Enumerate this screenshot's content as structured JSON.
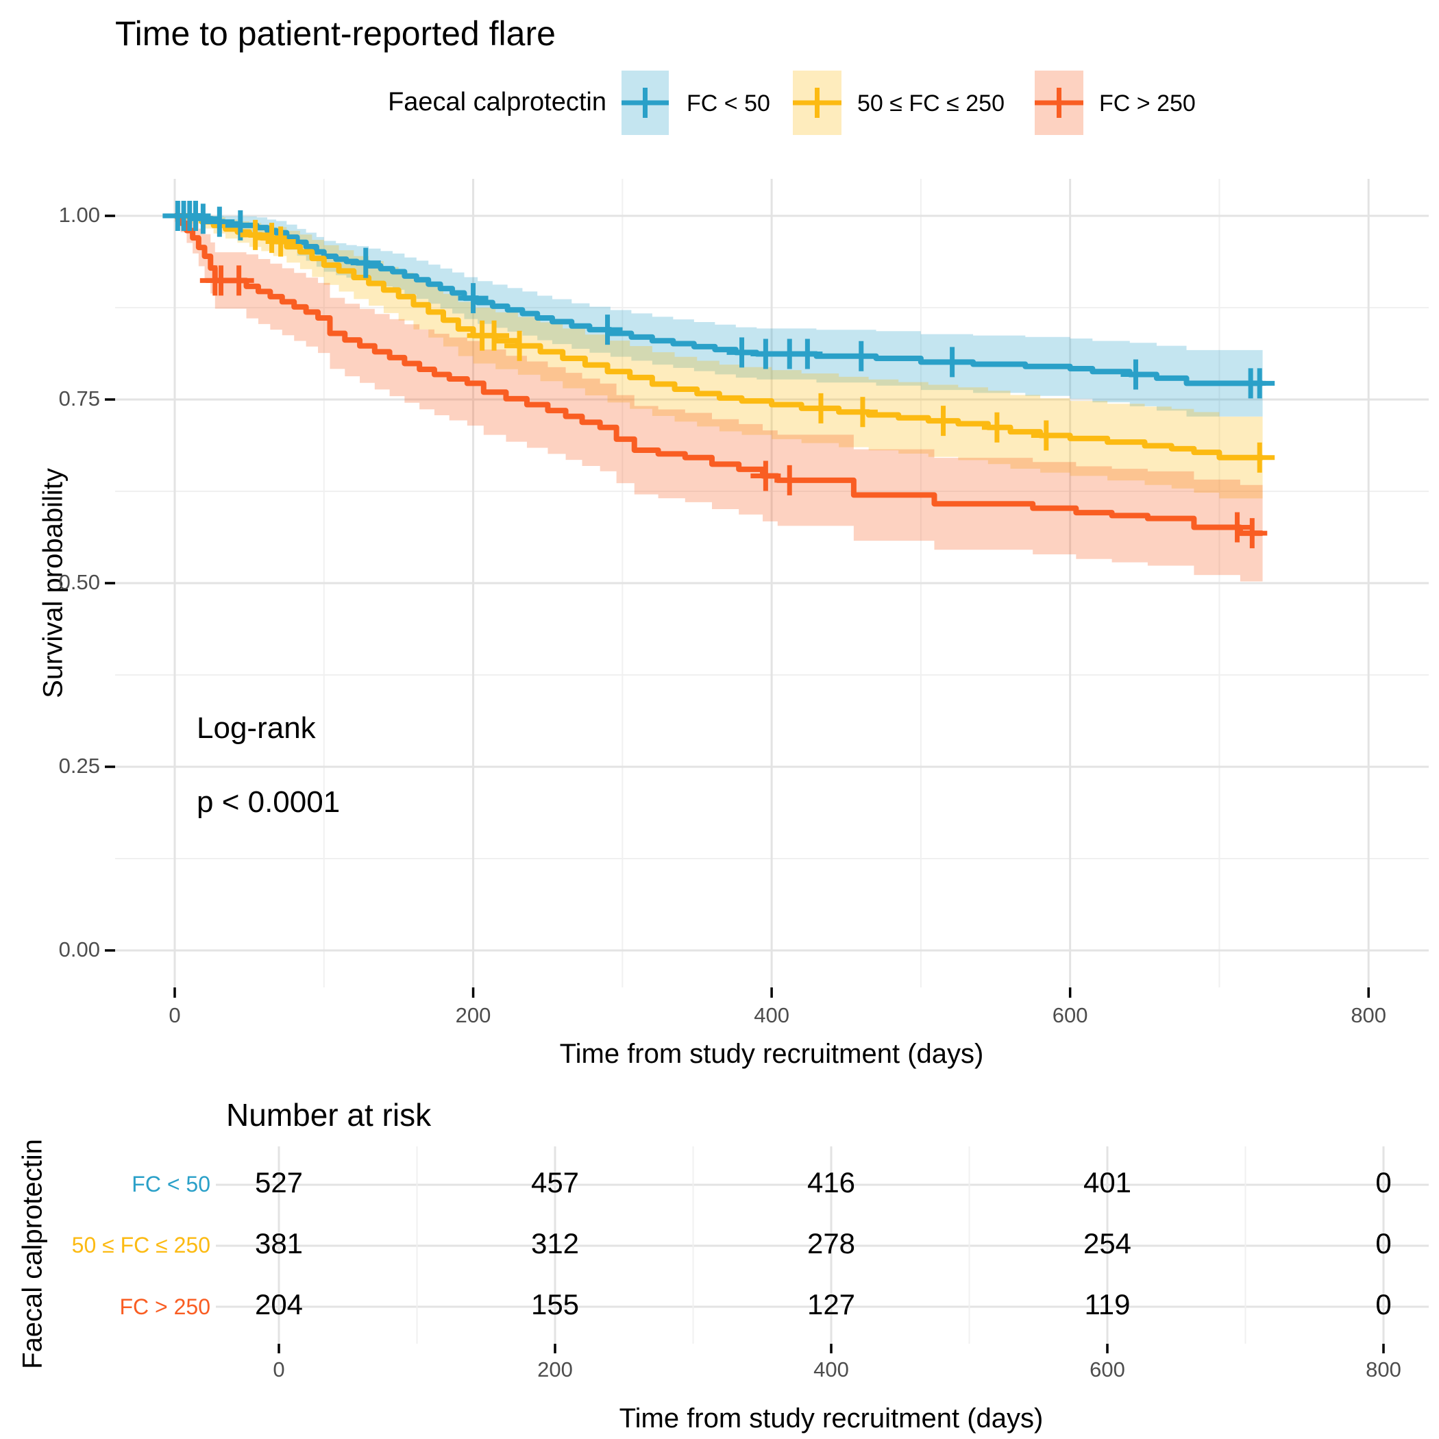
{
  "title": "Time to patient-reported flare",
  "legend": {
    "title": "Faecal calprotectin",
    "items": [
      {
        "label": "FC < 50",
        "color": "#2AA0C8"
      },
      {
        "label": "50 ≤ FC ≤ 250",
        "color": "#FCBA12"
      },
      {
        "label": "FC > 250",
        "color": "#F95D22"
      }
    ]
  },
  "annotation": {
    "line1": "Log-rank",
    "line2": "p < 0.0001"
  },
  "chart_data": {
    "type": "line",
    "subtype": "kaplan-meier-step",
    "title": "Time to patient-reported flare",
    "xlabel": "Time from study recruitment (days)",
    "ylabel": "Survival probability",
    "xlim": [
      0,
      800
    ],
    "xticks": [
      0,
      200,
      400,
      600,
      800
    ],
    "xminor": [
      100,
      300,
      500,
      700
    ],
    "ylim": [
      0,
      1
    ],
    "yticks": [
      0,
      0.25,
      0.5,
      0.75,
      1
    ],
    "yticklabels": [
      "0.00",
      "0.25",
      "0.50",
      "0.75",
      "1.00"
    ],
    "yminor": [
      0.125,
      0.375,
      0.625,
      0.875
    ],
    "grid": true,
    "legend_position": "top",
    "end_time": 729,
    "series": [
      {
        "name": "FC < 50",
        "color": "#2AA0C8",
        "n_start": 527,
        "steps": [
          [
            0,
            1.0
          ],
          [
            17,
            0.996
          ],
          [
            25,
            0.992
          ],
          [
            33,
            0.989
          ],
          [
            44,
            0.987
          ],
          [
            55,
            0.984
          ],
          [
            62,
            0.98
          ],
          [
            68,
            0.977
          ],
          [
            75,
            0.971
          ],
          [
            82,
            0.964
          ],
          [
            88,
            0.958
          ],
          [
            95,
            0.951
          ],
          [
            100,
            0.945
          ],
          [
            108,
            0.941
          ],
          [
            115,
            0.938
          ],
          [
            122,
            0.936
          ],
          [
            130,
            0.932
          ],
          [
            138,
            0.928
          ],
          [
            146,
            0.924
          ],
          [
            154,
            0.918
          ],
          [
            162,
            0.913
          ],
          [
            170,
            0.907
          ],
          [
            178,
            0.901
          ],
          [
            186,
            0.895
          ],
          [
            194,
            0.888
          ],
          [
            203,
            0.882
          ],
          [
            213,
            0.877
          ],
          [
            223,
            0.872
          ],
          [
            233,
            0.867
          ],
          [
            243,
            0.861
          ],
          [
            253,
            0.856
          ],
          [
            266,
            0.85
          ],
          [
            278,
            0.845
          ],
          [
            292,
            0.84
          ],
          [
            306,
            0.835
          ],
          [
            320,
            0.83
          ],
          [
            334,
            0.826
          ],
          [
            348,
            0.822
          ],
          [
            362,
            0.818
          ],
          [
            376,
            0.814
          ],
          [
            390,
            0.812
          ],
          [
            430,
            0.809
          ],
          [
            470,
            0.806
          ],
          [
            500,
            0.801
          ],
          [
            535,
            0.798
          ],
          [
            570,
            0.795
          ],
          [
            600,
            0.792
          ],
          [
            615,
            0.788
          ],
          [
            640,
            0.784
          ],
          [
            658,
            0.779
          ],
          [
            678,
            0.772
          ]
        ],
        "censor_times": [
          2,
          6,
          10,
          14,
          19,
          30,
          44,
          128,
          200,
          290,
          380,
          396,
          412,
          424,
          460,
          521,
          644,
          721,
          727
        ],
        "ci_halfwidth": [
          [
            0,
            0.004
          ],
          [
            30,
            0.01
          ],
          [
            100,
            0.021
          ],
          [
            200,
            0.029
          ],
          [
            400,
            0.035
          ],
          [
            600,
            0.041
          ],
          [
            729,
            0.048
          ]
        ]
      },
      {
        "name": "50 ≤ FC ≤ 250",
        "color": "#FCBA12",
        "n_start": 381,
        "steps": [
          [
            0,
            1.0
          ],
          [
            10,
            0.997
          ],
          [
            18,
            0.992
          ],
          [
            26,
            0.987
          ],
          [
            34,
            0.982
          ],
          [
            42,
            0.978
          ],
          [
            50,
            0.974
          ],
          [
            58,
            0.97
          ],
          [
            66,
            0.965
          ],
          [
            75,
            0.958
          ],
          [
            84,
            0.951
          ],
          [
            92,
            0.942
          ],
          [
            100,
            0.933
          ],
          [
            110,
            0.925
          ],
          [
            120,
            0.916
          ],
          [
            130,
            0.908
          ],
          [
            140,
            0.899
          ],
          [
            150,
            0.89
          ],
          [
            160,
            0.879
          ],
          [
            170,
            0.869
          ],
          [
            180,
            0.858
          ],
          [
            190,
            0.846
          ],
          [
            200,
            0.837
          ],
          [
            215,
            0.83
          ],
          [
            230,
            0.823
          ],
          [
            245,
            0.815
          ],
          [
            260,
            0.806
          ],
          [
            275,
            0.797
          ],
          [
            290,
            0.788
          ],
          [
            305,
            0.78
          ],
          [
            320,
            0.771
          ],
          [
            335,
            0.764
          ],
          [
            350,
            0.758
          ],
          [
            365,
            0.752
          ],
          [
            380,
            0.748
          ],
          [
            400,
            0.743
          ],
          [
            420,
            0.738
          ],
          [
            445,
            0.733
          ],
          [
            465,
            0.729
          ],
          [
            485,
            0.725
          ],
          [
            505,
            0.721
          ],
          [
            525,
            0.717
          ],
          [
            545,
            0.712
          ],
          [
            560,
            0.706
          ],
          [
            580,
            0.701
          ],
          [
            600,
            0.697
          ],
          [
            625,
            0.692
          ],
          [
            650,
            0.687
          ],
          [
            668,
            0.683
          ],
          [
            683,
            0.678
          ],
          [
            700,
            0.671
          ]
        ],
        "censor_times": [
          54,
          65,
          71,
          206,
          214,
          231,
          433,
          461,
          515,
          551,
          584,
          727
        ],
        "ci_halfwidth": [
          [
            0,
            0.005
          ],
          [
            30,
            0.012
          ],
          [
            100,
            0.027
          ],
          [
            200,
            0.038
          ],
          [
            400,
            0.047
          ],
          [
            600,
            0.051
          ],
          [
            729,
            0.057
          ]
        ]
      },
      {
        "name": "FC > 250",
        "color": "#F95D22",
        "n_start": 204,
        "steps": [
          [
            0,
            1.0
          ],
          [
            4,
            0.99
          ],
          [
            8,
            0.98
          ],
          [
            12,
            0.97
          ],
          [
            16,
            0.957
          ],
          [
            20,
            0.945
          ],
          [
            24,
            0.929
          ],
          [
            27,
            0.912
          ],
          [
            48,
            0.904
          ],
          [
            56,
            0.897
          ],
          [
            64,
            0.89
          ],
          [
            72,
            0.883
          ],
          [
            80,
            0.876
          ],
          [
            88,
            0.869
          ],
          [
            96,
            0.861
          ],
          [
            104,
            0.84
          ],
          [
            114,
            0.831
          ],
          [
            124,
            0.823
          ],
          [
            134,
            0.815
          ],
          [
            144,
            0.807
          ],
          [
            154,
            0.799
          ],
          [
            164,
            0.791
          ],
          [
            174,
            0.784
          ],
          [
            184,
            0.778
          ],
          [
            196,
            0.772
          ],
          [
            207,
            0.76
          ],
          [
            222,
            0.751
          ],
          [
            236,
            0.743
          ],
          [
            250,
            0.735
          ],
          [
            262,
            0.727
          ],
          [
            273,
            0.719
          ],
          [
            285,
            0.712
          ],
          [
            296,
            0.696
          ],
          [
            308,
            0.681
          ],
          [
            324,
            0.676
          ],
          [
            342,
            0.671
          ],
          [
            360,
            0.662
          ],
          [
            378,
            0.655
          ],
          [
            394,
            0.646
          ],
          [
            404,
            0.64
          ],
          [
            455,
            0.62
          ],
          [
            509,
            0.608
          ],
          [
            575,
            0.602
          ],
          [
            604,
            0.596
          ],
          [
            628,
            0.592
          ],
          [
            652,
            0.588
          ],
          [
            683,
            0.576
          ],
          [
            714,
            0.568
          ]
        ],
        "censor_times": [
          27,
          31,
          43,
          396,
          412,
          712,
          722
        ],
        "ci_halfwidth": [
          [
            0,
            0.008
          ],
          [
            20,
            0.03
          ],
          [
            30,
            0.042
          ],
          [
            100,
            0.048
          ],
          [
            200,
            0.058
          ],
          [
            400,
            0.062
          ],
          [
            600,
            0.063
          ],
          [
            729,
            0.066
          ]
        ]
      }
    ]
  },
  "risk_table": {
    "title": "Number at risk",
    "ylabel": "Faecal calprotectin",
    "xlabel": "Time from study recruitment (days)",
    "times": [
      0,
      200,
      400,
      600,
      800
    ],
    "rows": [
      {
        "label": "FC < 50",
        "color": "#2AA0C8",
        "values": [
          "527",
          "457",
          "416",
          "401",
          "0"
        ]
      },
      {
        "label": "50 ≤ FC ≤ 250",
        "color": "#FCBA12",
        "values": [
          "381",
          "312",
          "278",
          "254",
          "0"
        ]
      },
      {
        "label": "FC > 250",
        "color": "#F95D22",
        "values": [
          "204",
          "155",
          "127",
          "119",
          "0"
        ]
      }
    ]
  }
}
